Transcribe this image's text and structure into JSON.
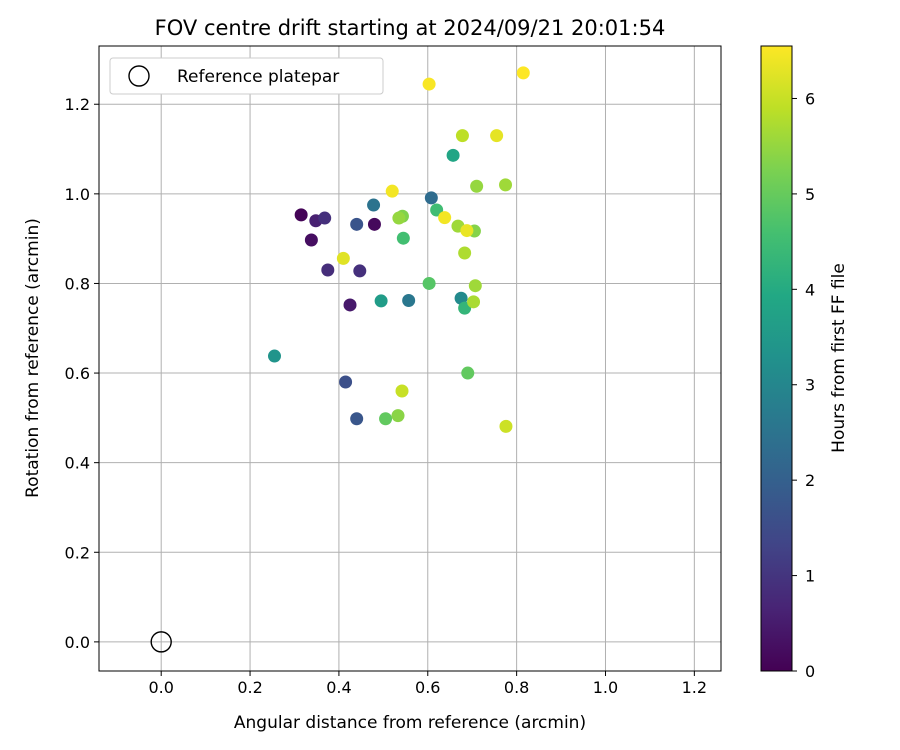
{
  "chart_data": {
    "type": "scatter",
    "title": "FOV centre drift starting at 2024/09/21 20:01:54",
    "xlabel": "Angular distance from reference (arcmin)",
    "ylabel": "Rotation from reference (arcmin)",
    "xlim": [
      -0.14,
      1.26
    ],
    "ylim": [
      -0.065,
      1.33
    ],
    "xticks": [
      "0.0",
      "0.2",
      "0.4",
      "0.6",
      "0.8",
      "1.0",
      "1.2"
    ],
    "yticks": [
      "0.0",
      "0.2",
      "0.4",
      "0.6",
      "0.8",
      "1.0",
      "1.2"
    ],
    "grid": true,
    "legend": {
      "placement": "top-left",
      "entries": [
        "Reference platepar"
      ]
    },
    "reference_point": {
      "x": 0.0,
      "y": 0.0
    },
    "colorbar": {
      "label": "Hours from first FF file",
      "min": 0,
      "max": 6.55,
      "ticks": [
        "0",
        "1",
        "2",
        "3",
        "4",
        "5",
        "6"
      ],
      "colormap": "viridis"
    },
    "points": [
      {
        "x": 0.315,
        "y": 0.953,
        "c": 0.05
      },
      {
        "x": 0.338,
        "y": 0.897,
        "c": 0.25
      },
      {
        "x": 0.48,
        "y": 0.932,
        "c": 0.15
      },
      {
        "x": 0.348,
        "y": 0.94,
        "c": 0.6
      },
      {
        "x": 0.368,
        "y": 0.946,
        "c": 0.9
      },
      {
        "x": 0.425,
        "y": 0.752,
        "c": 0.45
      },
      {
        "x": 0.375,
        "y": 0.83,
        "c": 0.85
      },
      {
        "x": 0.447,
        "y": 0.828,
        "c": 0.9
      },
      {
        "x": 0.44,
        "y": 0.932,
        "c": 1.7
      },
      {
        "x": 0.415,
        "y": 0.58,
        "c": 1.6
      },
      {
        "x": 0.44,
        "y": 0.498,
        "c": 1.75
      },
      {
        "x": 0.478,
        "y": 0.975,
        "c": 2.5
      },
      {
        "x": 0.557,
        "y": 0.762,
        "c": 2.6
      },
      {
        "x": 0.608,
        "y": 0.991,
        "c": 2.3
      },
      {
        "x": 0.675,
        "y": 0.767,
        "c": 3.1
      },
      {
        "x": 0.255,
        "y": 0.638,
        "c": 3.35
      },
      {
        "x": 0.495,
        "y": 0.761,
        "c": 3.6
      },
      {
        "x": 0.657,
        "y": 1.086,
        "c": 3.85
      },
      {
        "x": 0.683,
        "y": 0.745,
        "c": 4.3
      },
      {
        "x": 0.545,
        "y": 0.901,
        "c": 4.55
      },
      {
        "x": 0.62,
        "y": 0.964,
        "c": 4.5
      },
      {
        "x": 0.603,
        "y": 0.8,
        "c": 4.8
      },
      {
        "x": 0.505,
        "y": 0.498,
        "c": 4.95
      },
      {
        "x": 0.69,
        "y": 0.6,
        "c": 4.95
      },
      {
        "x": 0.543,
        "y": 0.95,
        "c": 5.3
      },
      {
        "x": 0.535,
        "y": 0.946,
        "c": 5.5
      },
      {
        "x": 0.533,
        "y": 0.505,
        "c": 5.4
      },
      {
        "x": 0.668,
        "y": 0.928,
        "c": 5.6
      },
      {
        "x": 0.71,
        "y": 1.017,
        "c": 5.5
      },
      {
        "x": 0.705,
        "y": 0.917,
        "c": 5.35
      },
      {
        "x": 0.775,
        "y": 1.02,
        "c": 5.6
      },
      {
        "x": 0.707,
        "y": 0.795,
        "c": 5.6
      },
      {
        "x": 0.703,
        "y": 0.759,
        "c": 5.7
      },
      {
        "x": 0.683,
        "y": 0.868,
        "c": 5.75
      },
      {
        "x": 0.678,
        "y": 1.13,
        "c": 5.9
      },
      {
        "x": 0.542,
        "y": 0.56,
        "c": 6.0
      },
      {
        "x": 0.776,
        "y": 0.481,
        "c": 6.05
      },
      {
        "x": 0.41,
        "y": 0.856,
        "c": 6.25
      },
      {
        "x": 0.755,
        "y": 1.13,
        "c": 6.3
      },
      {
        "x": 0.688,
        "y": 0.918,
        "c": 6.35
      },
      {
        "x": 0.52,
        "y": 1.006,
        "c": 6.45
      },
      {
        "x": 0.638,
        "y": 0.947,
        "c": 6.45
      },
      {
        "x": 0.603,
        "y": 1.245,
        "c": 6.5
      },
      {
        "x": 0.815,
        "y": 1.27,
        "c": 6.55
      }
    ]
  }
}
